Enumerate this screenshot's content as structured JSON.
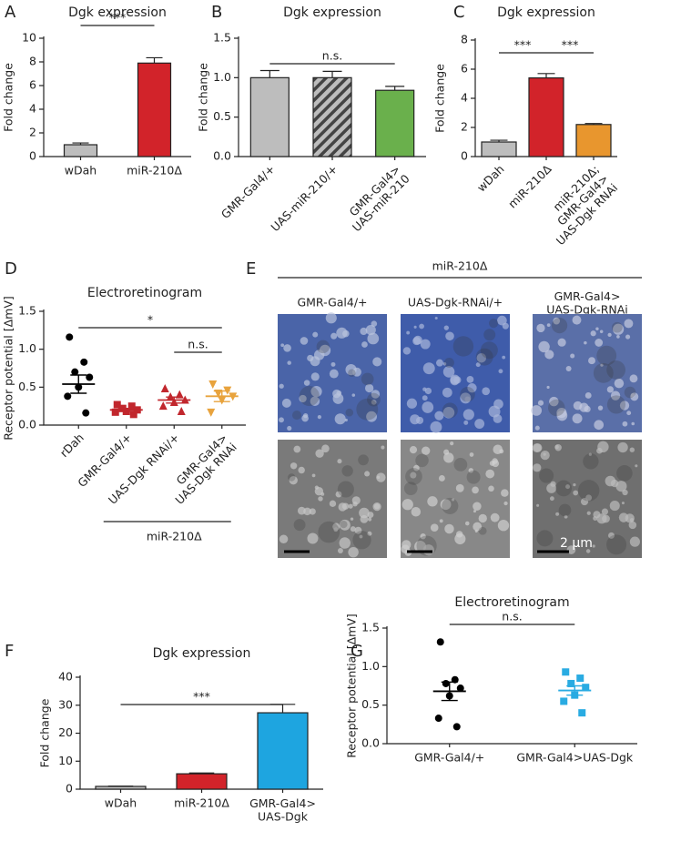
{
  "chart_data": [
    {
      "type": "bar",
      "panel": "A",
      "title": "Dgk expression",
      "ylabel": "Fold change",
      "categories": [
        "wDah",
        "miR-210Δ"
      ],
      "values": [
        1.0,
        7.9
      ],
      "errors": [
        0.15,
        0.45
      ],
      "colors": [
        "#bdbdbd",
        "#d2232a"
      ],
      "ylim": [
        0,
        10
      ],
      "yticks": [
        0,
        2,
        4,
        6,
        8,
        10
      ],
      "annotations": [
        "***"
      ]
    },
    {
      "type": "bar",
      "panel": "B",
      "title": "Dgk expression",
      "ylabel": "Fold change",
      "categories": [
        "GMR-Gal4/+",
        "UAS-miR-210/+",
        "GMR-Gal4>\nUAS-miR-210"
      ],
      "values": [
        1.0,
        1.0,
        0.84
      ],
      "errors": [
        0.09,
        0.08,
        0.05
      ],
      "colors": [
        "#bdbdbd",
        "#bdbdbd",
        "#6ab04c"
      ],
      "hatch": [
        false,
        true,
        false
      ],
      "ylim": [
        0,
        1.5
      ],
      "yticks": [
        {
          "value": 0,
          "label": "0.0"
        },
        0.5,
        {
          "value": 1,
          "label": "1.0"
        },
        1.5
      ],
      "annotations": [
        "n.s."
      ]
    },
    {
      "type": "bar",
      "panel": "C",
      "title": "Dgk expression",
      "ylabel": "Fold change",
      "categories": [
        "wDah",
        "miR-210Δ",
        "miR-210Δ;\nGMR-Gal4>\nUAS-Dgk RNAi"
      ],
      "values": [
        1.0,
        5.4,
        2.2
      ],
      "errors": [
        0.12,
        0.3,
        0.07
      ],
      "colors": [
        "#bdbdbd",
        "#d2232a",
        "#e8962e"
      ],
      "ylim": [
        0,
        8
      ],
      "yticks": [
        0,
        2,
        4,
        6,
        8
      ],
      "annotations": [
        "***",
        "***"
      ]
    },
    {
      "type": "dotplot",
      "panel": "D",
      "title": "Electroretinogram",
      "ylabel": "Receptor potential [ΔmV]",
      "categories": [
        "rDah",
        "GMR-Gal4/+",
        "UAS-Dgk RNAi/+",
        "GMR-Gal4>\nUAS-Dgk RNAi"
      ],
      "points": [
        [
          1.16,
          0.83,
          0.7,
          0.63,
          0.5,
          0.38,
          0.16
        ],
        [
          0.27,
          0.25,
          0.22,
          0.2,
          0.18,
          0.17,
          0.14
        ],
        [
          0.48,
          0.4,
          0.37,
          0.33,
          0.3,
          0.25,
          0.18
        ],
        [
          0.54,
          0.46,
          0.42,
          0.38,
          0.33,
          0.17
        ]
      ],
      "means": [
        0.54,
        0.2,
        0.33,
        0.38
      ],
      "sems": [
        0.12,
        0.02,
        0.04,
        0.07
      ],
      "colors": [
        "#000000",
        "#c1272d",
        "#c1272d",
        "#e8a33d"
      ],
      "markers": [
        "circle",
        "square",
        "triangle",
        "triangle-down"
      ],
      "ylim": [
        0,
        1.5
      ],
      "yticks": [
        {
          "value": 0,
          "label": "0.0"
        },
        0.5,
        {
          "value": 1,
          "label": "1.0"
        },
        1.5
      ],
      "annotations": [
        "*",
        "n.s."
      ],
      "group_label": "miR-210Δ"
    },
    {
      "type": "bar",
      "panel": "F",
      "title": "Dgk expression",
      "ylabel": "Fold change",
      "categories": [
        "wDah",
        "miR-210Δ",
        "GMR-Gal4>\nUAS-Dgk"
      ],
      "values": [
        1.0,
        5.5,
        27.3
      ],
      "errors": [
        0.1,
        0.3,
        3.0
      ],
      "colors": [
        "#bdbdbd",
        "#d2232a",
        "#1ea5e0"
      ],
      "ylim": [
        0,
        40
      ],
      "yticks": [
        0,
        10,
        20,
        30,
        40
      ],
      "annotations": [
        "***"
      ]
    },
    {
      "type": "dotplot",
      "panel": "G",
      "title": "Electroretinogram",
      "ylabel": "Receptor potential [ΔmV]",
      "categories": [
        "GMR-Gal4/+",
        "GMR-Gal4>UAS-Dgk"
      ],
      "points": [
        [
          1.32,
          0.83,
          0.78,
          0.72,
          0.62,
          0.33,
          0.22
        ],
        [
          0.93,
          0.85,
          0.78,
          0.73,
          0.63,
          0.55,
          0.4
        ]
      ],
      "means": [
        0.68,
        0.69
      ],
      "sems": [
        0.12,
        0.06
      ],
      "colors": [
        "#000000",
        "#29abe2"
      ],
      "markers": [
        "circle",
        "square"
      ],
      "ylim": [
        0,
        1.5
      ],
      "yticks": [
        {
          "value": 0,
          "label": "0.0"
        },
        0.5,
        {
          "value": 1,
          "label": "1.0"
        },
        1.5
      ],
      "annotations": [
        "n.s."
      ]
    }
  ],
  "panel_e": {
    "panel": "E",
    "group_label": "miR-210Δ",
    "columns": [
      "GMR-Gal4/+",
      "UAS-Dgk-RNAi/+",
      "GMR-Gal4>\nUAS-Dgk-RNAi"
    ],
    "scale_bar": "2 µm"
  }
}
